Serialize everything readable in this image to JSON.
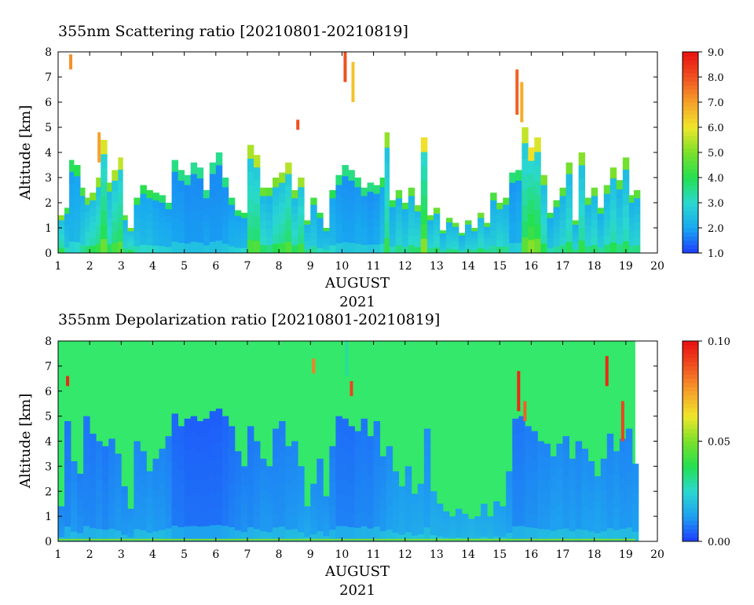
{
  "chart_data": [
    {
      "type": "heatmap",
      "title": "355nm Scattering ratio [20210801-20210819]",
      "xlabel": "AUGUST",
      "xlabel_year": "2021",
      "ylabel": "Altitude [km]",
      "xlim": [
        1,
        20
      ],
      "ylim": [
        0,
        8
      ],
      "x_ticks": [
        "1",
        "2",
        "3",
        "4",
        "5",
        "6",
        "7",
        "8",
        "9",
        "10",
        "11",
        "12",
        "13",
        "14",
        "15",
        "16",
        "17",
        "18",
        "19",
        "20"
      ],
      "y_ticks": [
        "0",
        "1",
        "2",
        "3",
        "4",
        "5",
        "6",
        "7",
        "8"
      ],
      "colorbar": {
        "min": 1.0,
        "max": 9.0,
        "ticks": [
          "1.0",
          "2.0",
          "3.0",
          "4.0",
          "5.0",
          "6.0",
          "7.0",
          "8.0",
          "9.0"
        ],
        "colors": [
          "#1e3cff",
          "#18a8f0",
          "#2ad8d0",
          "#25e050",
          "#7be02a",
          "#f0e62a",
          "#f5a02a",
          "#f05020",
          "#e81010"
        ]
      },
      "background_color": "#ffffff",
      "columns": [
        {
          "x": 1.0,
          "top": 1.5,
          "v": 3.5
        },
        {
          "x": 1.2,
          "top": 1.8,
          "v": 2.6
        },
        {
          "x": 1.35,
          "top": 3.7,
          "v": 2.3
        },
        {
          "x": 1.5,
          "top": 3.5,
          "v": 2.4
        },
        {
          "x": 1.7,
          "top": 2.6,
          "v": 2.8
        },
        {
          "x": 1.85,
          "top": 2.2,
          "v": 3.2
        },
        {
          "x": 2.0,
          "top": 2.4,
          "v": 3.4
        },
        {
          "x": 2.2,
          "top": 3.0,
          "v": 3.6
        },
        {
          "x": 2.35,
          "top": 4.5,
          "v": 4.2
        },
        {
          "x": 2.55,
          "top": 2.8,
          "v": 3.3
        },
        {
          "x": 2.7,
          "top": 3.3,
          "v": 3.8
        },
        {
          "x": 2.9,
          "top": 3.8,
          "v": 4.0
        },
        {
          "x": 3.05,
          "top": 1.5,
          "v": 3.0
        },
        {
          "x": 3.2,
          "top": 1.0,
          "v": 3.4
        },
        {
          "x": 3.4,
          "top": 2.2,
          "v": 2.6
        },
        {
          "x": 3.6,
          "top": 2.7,
          "v": 2.4
        },
        {
          "x": 3.8,
          "top": 2.5,
          "v": 2.5
        },
        {
          "x": 4.0,
          "top": 2.4,
          "v": 2.3
        },
        {
          "x": 4.2,
          "top": 2.3,
          "v": 2.2
        },
        {
          "x": 4.4,
          "top": 2.0,
          "v": 2.2
        },
        {
          "x": 4.6,
          "top": 3.7,
          "v": 2.0
        },
        {
          "x": 4.8,
          "top": 3.3,
          "v": 2.0
        },
        {
          "x": 5.0,
          "top": 3.1,
          "v": 1.9
        },
        {
          "x": 5.2,
          "top": 3.6,
          "v": 1.9
        },
        {
          "x": 5.4,
          "top": 3.4,
          "v": 1.9
        },
        {
          "x": 5.6,
          "top": 2.5,
          "v": 2.0
        },
        {
          "x": 5.8,
          "top": 3.6,
          "v": 1.9
        },
        {
          "x": 6.0,
          "top": 4.0,
          "v": 1.9
        },
        {
          "x": 6.2,
          "top": 3.0,
          "v": 2.0
        },
        {
          "x": 6.4,
          "top": 2.2,
          "v": 2.2
        },
        {
          "x": 6.6,
          "top": 1.7,
          "v": 2.3
        },
        {
          "x": 6.8,
          "top": 1.6,
          "v": 2.4
        },
        {
          "x": 7.0,
          "top": 4.3,
          "v": 3.8
        },
        {
          "x": 7.2,
          "top": 3.9,
          "v": 3.9
        },
        {
          "x": 7.4,
          "top": 2.6,
          "v": 3.2
        },
        {
          "x": 7.6,
          "top": 2.6,
          "v": 3.0
        },
        {
          "x": 7.8,
          "top": 3.0,
          "v": 3.4
        },
        {
          "x": 8.0,
          "top": 3.2,
          "v": 3.6
        },
        {
          "x": 8.2,
          "top": 3.6,
          "v": 3.9
        },
        {
          "x": 8.4,
          "top": 2.5,
          "v": 3.3
        },
        {
          "x": 8.6,
          "top": 3.0,
          "v": 3.7
        },
        {
          "x": 8.8,
          "top": 1.3,
          "v": 2.9
        },
        {
          "x": 9.0,
          "top": 2.2,
          "v": 2.8
        },
        {
          "x": 9.2,
          "top": 1.6,
          "v": 2.5
        },
        {
          "x": 9.4,
          "top": 1.0,
          "v": 2.7
        },
        {
          "x": 9.6,
          "top": 2.5,
          "v": 2.4
        },
        {
          "x": 9.8,
          "top": 3.1,
          "v": 2.1
        },
        {
          "x": 10.0,
          "top": 3.5,
          "v": 2.0
        },
        {
          "x": 10.2,
          "top": 3.3,
          "v": 2.0
        },
        {
          "x": 10.4,
          "top": 3.0,
          "v": 2.1
        },
        {
          "x": 10.6,
          "top": 2.6,
          "v": 2.1
        },
        {
          "x": 10.8,
          "top": 2.8,
          "v": 2.0
        },
        {
          "x": 11.0,
          "top": 2.7,
          "v": 2.1
        },
        {
          "x": 11.2,
          "top": 3.0,
          "v": 2.5
        },
        {
          "x": 11.35,
          "top": 4.8,
          "v": 3.6
        },
        {
          "x": 11.5,
          "top": 2.1,
          "v": 2.6
        },
        {
          "x": 11.7,
          "top": 2.5,
          "v": 3.0
        },
        {
          "x": 11.9,
          "top": 2.0,
          "v": 2.8
        },
        {
          "x": 12.1,
          "top": 2.6,
          "v": 3.1
        },
        {
          "x": 12.3,
          "top": 1.9,
          "v": 3.2
        },
        {
          "x": 12.5,
          "top": 4.6,
          "v": 4.5
        },
        {
          "x": 12.7,
          "top": 1.5,
          "v": 3.0
        },
        {
          "x": 12.9,
          "top": 1.8,
          "v": 3.2
        },
        {
          "x": 13.1,
          "top": 0.9,
          "v": 2.8
        },
        {
          "x": 13.3,
          "top": 1.4,
          "v": 3.0
        },
        {
          "x": 13.5,
          "top": 1.2,
          "v": 3.1
        },
        {
          "x": 13.7,
          "top": 0.8,
          "v": 2.7
        },
        {
          "x": 13.9,
          "top": 1.3,
          "v": 2.9
        },
        {
          "x": 14.1,
          "top": 1.0,
          "v": 3.0
        },
        {
          "x": 14.3,
          "top": 1.6,
          "v": 3.2
        },
        {
          "x": 14.5,
          "top": 1.2,
          "v": 3.0
        },
        {
          "x": 14.7,
          "top": 2.4,
          "v": 2.8
        },
        {
          "x": 14.9,
          "top": 2.0,
          "v": 3.1
        },
        {
          "x": 15.1,
          "top": 2.2,
          "v": 2.9
        },
        {
          "x": 15.3,
          "top": 3.2,
          "v": 2.1
        },
        {
          "x": 15.5,
          "top": 3.3,
          "v": 2.2
        },
        {
          "x": 15.7,
          "top": 5.0,
          "v": 4.0
        },
        {
          "x": 15.9,
          "top": 4.2,
          "v": 4.5
        },
        {
          "x": 16.1,
          "top": 4.6,
          "v": 4.2
        },
        {
          "x": 16.3,
          "top": 3.1,
          "v": 3.4
        },
        {
          "x": 16.5,
          "top": 1.6,
          "v": 2.6
        },
        {
          "x": 16.7,
          "top": 2.1,
          "v": 2.8
        },
        {
          "x": 16.9,
          "top": 2.6,
          "v": 3.0
        },
        {
          "x": 17.1,
          "top": 3.6,
          "v": 3.3
        },
        {
          "x": 17.3,
          "top": 1.3,
          "v": 2.9
        },
        {
          "x": 17.5,
          "top": 4.0,
          "v": 3.5
        },
        {
          "x": 17.7,
          "top": 2.2,
          "v": 3.0
        },
        {
          "x": 17.9,
          "top": 2.6,
          "v": 3.2
        },
        {
          "x": 18.1,
          "top": 1.8,
          "v": 2.8
        },
        {
          "x": 18.3,
          "top": 2.7,
          "v": 3.1
        },
        {
          "x": 18.5,
          "top": 3.4,
          "v": 3.4
        },
        {
          "x": 18.7,
          "top": 2.9,
          "v": 3.0
        },
        {
          "x": 18.9,
          "top": 3.8,
          "v": 3.3
        },
        {
          "x": 19.1,
          "top": 2.3,
          "v": 2.9
        },
        {
          "x": 19.25,
          "top": 2.5,
          "v": 3.0
        }
      ],
      "aloft_features": [
        {
          "x": 10.1,
          "y0": 6.8,
          "y1": 8.0,
          "v": 8.0
        },
        {
          "x": 10.35,
          "y0": 6.0,
          "y1": 7.6,
          "v": 6.5
        },
        {
          "x": 15.55,
          "y0": 5.5,
          "y1": 7.3,
          "v": 7.8
        },
        {
          "x": 15.7,
          "y0": 5.2,
          "y1": 6.8,
          "v": 6.8
        },
        {
          "x": 2.3,
          "y0": 3.6,
          "y1": 4.8,
          "v": 7.0
        },
        {
          "x": 8.6,
          "y0": 4.9,
          "y1": 5.3,
          "v": 8.0
        },
        {
          "x": 1.4,
          "y0": 7.3,
          "y1": 7.9,
          "v": 7.2
        }
      ]
    },
    {
      "type": "heatmap",
      "title": "355nm Depolarization ratio [20210801-20210819]",
      "xlabel": "AUGUST",
      "xlabel_year": "2021",
      "ylabel": "Altitude [km]",
      "xlim": [
        1,
        20
      ],
      "ylim": [
        0,
        8
      ],
      "x_ticks": [
        "1",
        "2",
        "3",
        "4",
        "5",
        "6",
        "7",
        "8",
        "9",
        "10",
        "11",
        "12",
        "13",
        "14",
        "15",
        "16",
        "17",
        "18",
        "19",
        "20"
      ],
      "y_ticks": [
        "0",
        "1",
        "2",
        "3",
        "4",
        "5",
        "6",
        "7",
        "8"
      ],
      "colorbar": {
        "min": 0.0,
        "max": 0.1,
        "ticks": [
          "0.00",
          "0.05",
          "0.10"
        ],
        "colors": [
          "#1e3cff",
          "#1ea0f0",
          "#2ad8d0",
          "#25e050",
          "#7be02a",
          "#f0e62a",
          "#f5a02a",
          "#f05020",
          "#e81010"
        ]
      },
      "background_value": 0.04,
      "background_color": "#33e86a",
      "data_end_x": 19.3,
      "columns": [
        {
          "x": 1.0,
          "top": 1.4,
          "v": 0.012
        },
        {
          "x": 1.2,
          "top": 4.8,
          "v": 0.01
        },
        {
          "x": 1.4,
          "top": 3.2,
          "v": 0.012
        },
        {
          "x": 1.6,
          "top": 2.7,
          "v": 0.011
        },
        {
          "x": 1.8,
          "top": 5.0,
          "v": 0.01
        },
        {
          "x": 2.0,
          "top": 4.3,
          "v": 0.01
        },
        {
          "x": 2.2,
          "top": 4.0,
          "v": 0.011
        },
        {
          "x": 2.4,
          "top": 3.8,
          "v": 0.01
        },
        {
          "x": 2.6,
          "top": 4.1,
          "v": 0.011
        },
        {
          "x": 2.8,
          "top": 3.5,
          "v": 0.012
        },
        {
          "x": 3.0,
          "top": 2.2,
          "v": 0.012
        },
        {
          "x": 3.2,
          "top": 1.3,
          "v": 0.013
        },
        {
          "x": 3.4,
          "top": 4.0,
          "v": 0.012
        },
        {
          "x": 3.6,
          "top": 3.6,
          "v": 0.012
        },
        {
          "x": 3.8,
          "top": 2.8,
          "v": 0.013
        },
        {
          "x": 4.0,
          "top": 3.3,
          "v": 0.012
        },
        {
          "x": 4.2,
          "top": 3.7,
          "v": 0.012
        },
        {
          "x": 4.4,
          "top": 4.2,
          "v": 0.011
        },
        {
          "x": 4.6,
          "top": 5.1,
          "v": 0.008
        },
        {
          "x": 4.8,
          "top": 4.6,
          "v": 0.008
        },
        {
          "x": 5.0,
          "top": 4.9,
          "v": 0.007
        },
        {
          "x": 5.2,
          "top": 5.0,
          "v": 0.007
        },
        {
          "x": 5.4,
          "top": 4.8,
          "v": 0.007
        },
        {
          "x": 5.6,
          "top": 4.9,
          "v": 0.007
        },
        {
          "x": 5.8,
          "top": 5.2,
          "v": 0.007
        },
        {
          "x": 6.0,
          "top": 5.3,
          "v": 0.007
        },
        {
          "x": 6.2,
          "top": 5.0,
          "v": 0.008
        },
        {
          "x": 6.4,
          "top": 4.6,
          "v": 0.009
        },
        {
          "x": 6.6,
          "top": 3.6,
          "v": 0.01
        },
        {
          "x": 6.8,
          "top": 3.0,
          "v": 0.011
        },
        {
          "x": 7.0,
          "top": 4.6,
          "v": 0.01
        },
        {
          "x": 7.2,
          "top": 4.0,
          "v": 0.011
        },
        {
          "x": 7.4,
          "top": 3.3,
          "v": 0.012
        },
        {
          "x": 7.6,
          "top": 3.0,
          "v": 0.012
        },
        {
          "x": 7.8,
          "top": 4.5,
          "v": 0.011
        },
        {
          "x": 8.0,
          "top": 4.8,
          "v": 0.011
        },
        {
          "x": 8.2,
          "top": 3.8,
          "v": 0.012
        },
        {
          "x": 8.4,
          "top": 4.0,
          "v": 0.012
        },
        {
          "x": 8.6,
          "top": 3.0,
          "v": 0.013
        },
        {
          "x": 8.8,
          "top": 1.4,
          "v": 0.015
        },
        {
          "x": 9.0,
          "top": 2.3,
          "v": 0.013
        },
        {
          "x": 9.2,
          "top": 3.3,
          "v": 0.012
        },
        {
          "x": 9.4,
          "top": 1.8,
          "v": 0.013
        },
        {
          "x": 9.6,
          "top": 3.8,
          "v": 0.011
        },
        {
          "x": 9.8,
          "top": 5.0,
          "v": 0.009
        },
        {
          "x": 10.0,
          "top": 4.9,
          "v": 0.009
        },
        {
          "x": 10.2,
          "top": 4.6,
          "v": 0.009
        },
        {
          "x": 10.4,
          "top": 4.4,
          "v": 0.01
        },
        {
          "x": 10.6,
          "top": 4.9,
          "v": 0.01
        },
        {
          "x": 10.8,
          "top": 4.2,
          "v": 0.01
        },
        {
          "x": 11.0,
          "top": 4.8,
          "v": 0.011
        },
        {
          "x": 11.2,
          "top": 3.4,
          "v": 0.012
        },
        {
          "x": 11.4,
          "top": 3.8,
          "v": 0.013
        },
        {
          "x": 11.6,
          "top": 2.8,
          "v": 0.014
        },
        {
          "x": 11.8,
          "top": 2.2,
          "v": 0.015
        },
        {
          "x": 12.0,
          "top": 3.0,
          "v": 0.014
        },
        {
          "x": 12.2,
          "top": 1.9,
          "v": 0.015
        },
        {
          "x": 12.4,
          "top": 2.3,
          "v": 0.015
        },
        {
          "x": 12.6,
          "top": 4.5,
          "v": 0.013
        },
        {
          "x": 12.8,
          "top": 2.0,
          "v": 0.016
        },
        {
          "x": 13.0,
          "top": 1.5,
          "v": 0.016
        },
        {
          "x": 13.2,
          "top": 1.2,
          "v": 0.016
        },
        {
          "x": 13.4,
          "top": 1.0,
          "v": 0.017
        },
        {
          "x": 13.6,
          "top": 1.3,
          "v": 0.016
        },
        {
          "x": 13.8,
          "top": 1.1,
          "v": 0.017
        },
        {
          "x": 14.0,
          "top": 0.9,
          "v": 0.018
        },
        {
          "x": 14.2,
          "top": 1.0,
          "v": 0.017
        },
        {
          "x": 14.4,
          "top": 1.5,
          "v": 0.016
        },
        {
          "x": 14.6,
          "top": 1.0,
          "v": 0.017
        },
        {
          "x": 14.8,
          "top": 1.6,
          "v": 0.015
        },
        {
          "x": 15.0,
          "top": 1.4,
          "v": 0.015
        },
        {
          "x": 15.2,
          "top": 2.8,
          "v": 0.013
        },
        {
          "x": 15.4,
          "top": 4.9,
          "v": 0.01
        },
        {
          "x": 15.6,
          "top": 5.0,
          "v": 0.01
        },
        {
          "x": 15.8,
          "top": 4.6,
          "v": 0.011
        },
        {
          "x": 16.0,
          "top": 4.4,
          "v": 0.011
        },
        {
          "x": 16.2,
          "top": 4.0,
          "v": 0.012
        },
        {
          "x": 16.4,
          "top": 3.9,
          "v": 0.012
        },
        {
          "x": 16.6,
          "top": 3.4,
          "v": 0.013
        },
        {
          "x": 16.8,
          "top": 3.9,
          "v": 0.013
        },
        {
          "x": 17.0,
          "top": 4.2,
          "v": 0.012
        },
        {
          "x": 17.2,
          "top": 3.3,
          "v": 0.013
        },
        {
          "x": 17.4,
          "top": 4.0,
          "v": 0.012
        },
        {
          "x": 17.6,
          "top": 3.7,
          "v": 0.013
        },
        {
          "x": 17.8,
          "top": 3.2,
          "v": 0.013
        },
        {
          "x": 18.0,
          "top": 2.6,
          "v": 0.014
        },
        {
          "x": 18.2,
          "top": 3.3,
          "v": 0.013
        },
        {
          "x": 18.4,
          "top": 4.3,
          "v": 0.012
        },
        {
          "x": 18.6,
          "top": 3.6,
          "v": 0.013
        },
        {
          "x": 18.8,
          "top": 4.1,
          "v": 0.012
        },
        {
          "x": 19.0,
          "top": 4.5,
          "v": 0.012
        },
        {
          "x": 19.2,
          "top": 3.1,
          "v": 0.013
        }
      ],
      "aloft_features": [
        {
          "x": 10.15,
          "y0": 6.6,
          "y1": 8.0,
          "v": 0.03
        },
        {
          "x": 10.3,
          "y0": 5.8,
          "y1": 6.4,
          "v": 0.09
        },
        {
          "x": 15.6,
          "y0": 5.2,
          "y1": 6.8,
          "v": 0.095
        },
        {
          "x": 15.8,
          "y0": 4.8,
          "y1": 5.6,
          "v": 0.085
        },
        {
          "x": 18.4,
          "y0": 6.2,
          "y1": 7.4,
          "v": 0.095
        },
        {
          "x": 18.9,
          "y0": 4.0,
          "y1": 5.6,
          "v": 0.09
        },
        {
          "x": 1.3,
          "y0": 6.2,
          "y1": 6.6,
          "v": 0.095
        },
        {
          "x": 9.1,
          "y0": 6.7,
          "y1": 7.3,
          "v": 0.08
        }
      ]
    }
  ]
}
